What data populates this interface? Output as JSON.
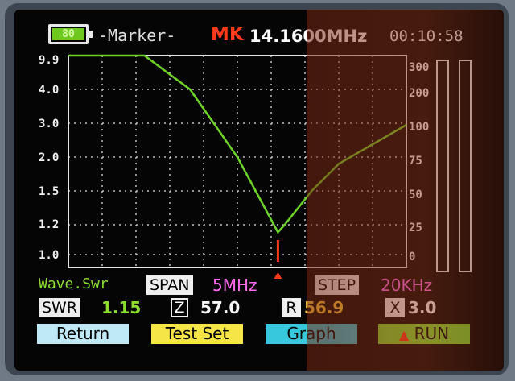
{
  "header": {
    "battery_level": "80",
    "mode": "-Marker-",
    "marker_label": "MK",
    "marker_freq": "14.1600MHz",
    "time": "00:10:58"
  },
  "chart_data": {
    "type": "line",
    "series": [
      {
        "values": [
          [
            0,
            9.9
          ],
          [
            0.225,
            9.9
          ],
          [
            0.36,
            4.0
          ],
          [
            0.5,
            2.0
          ],
          [
            0.62,
            1.15
          ],
          [
            0.64,
            1.2
          ],
          [
            0.72,
            1.5
          ],
          [
            0.8,
            1.9
          ],
          [
            1.0,
            2.95
          ]
        ]
      }
    ],
    "left_axis_ticks": [
      "9.9",
      "4.0",
      "3.0",
      "2.0",
      "1.5",
      "1.2",
      "1.0"
    ],
    "right_axis_ticks": [
      "300",
      "200",
      "100",
      "75",
      "50",
      "25",
      "0"
    ],
    "marker_position": 0.62,
    "grid": true,
    "colors": {
      "trace": "#6fd42a",
      "grid": "#bfbfbf",
      "marker": "#ff3a1a"
    }
  },
  "info": {
    "wave_label": "Wave.Swr",
    "span_label": "SPAN",
    "span_value": "5MHz",
    "step_label": "STEP",
    "step_value": "20KHz"
  },
  "readings": {
    "swr_label": "SWR",
    "swr_value": "1.15",
    "z_label": "Z",
    "z_value": "57.0",
    "r_label": "R",
    "r_value": "56.9",
    "x_label": "X",
    "x_value": "3.0"
  },
  "buttons": {
    "return": "Return",
    "test_set": "Test Set",
    "graph": "Graph",
    "run": "RUN"
  }
}
